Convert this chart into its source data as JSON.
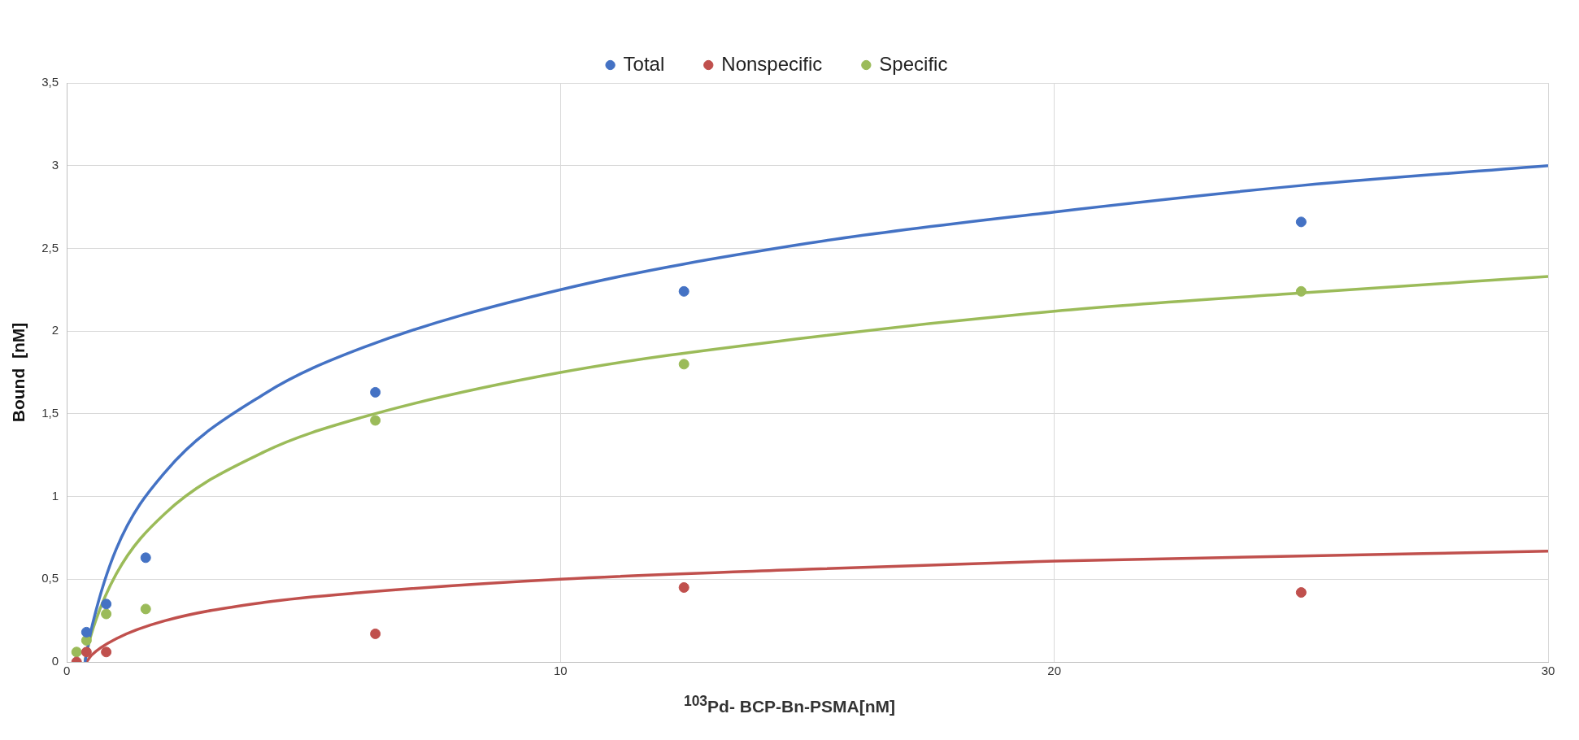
{
  "chart_data": {
    "type": "scatter",
    "xlabel": "$^{103}$Pd- BCP-Bn-PSMA[nM]",
    "ylabel": "Bound  [nM]",
    "xlim": [
      0,
      30
    ],
    "xticks": [
      0,
      10,
      20,
      30
    ],
    "ylim": [
      0,
      3.5
    ],
    "yticks": [
      0,
      {
        "value": 0.5,
        "label": "0,5"
      },
      1,
      {
        "value": 1.5,
        "label": "1,5"
      },
      2,
      {
        "value": 2.5,
        "label": "2,5"
      },
      3,
      {
        "value": 3.5,
        "label": "3,5"
      }
    ],
    "grid": true,
    "legend": "top",
    "series": [
      {
        "name": "Total",
        "color": "#4472c4",
        "marker": "circle",
        "x": [
          0.4,
          0.8,
          1.6,
          6.25,
          12.5,
          25
        ],
        "values": [
          0.18,
          0.35,
          0.63,
          1.63,
          2.24,
          2.66
        ]
      },
      {
        "name": "Nonspecific",
        "color": "#c0504d",
        "marker": "circle",
        "x": [
          0.2,
          0.4,
          0.8,
          6.25,
          12.5,
          25
        ],
        "values": [
          0,
          0.06,
          0.06,
          0.17,
          0.45,
          0.42
        ]
      },
      {
        "name": "Specific",
        "color": "#9bbb59",
        "marker": "circle",
        "x": [
          0.2,
          0.4,
          0.8,
          1.6,
          6.25,
          12.5,
          25
        ],
        "values": [
          0.06,
          0.13,
          0.29,
          0.32,
          1.46,
          1.8,
          2.24
        ]
      },
      {
        "type": "line",
        "color": "#4472c4",
        "marker": "none",
        "x": [
          0.37,
          0.5,
          1,
          2,
          4,
          6,
          10,
          15,
          20,
          25,
          30
        ],
        "values": [
          0,
          0.2,
          0.68,
          1.15,
          1.62,
          1.9,
          2.25,
          2.53,
          2.72,
          2.88,
          3
        ]
      },
      {
        "type": "line",
        "color": "#c0504d",
        "marker": "none",
        "x": [
          0.4,
          0.5,
          1,
          2,
          4,
          6,
          10,
          15,
          20,
          25,
          30
        ],
        "values": [
          0,
          0.04,
          0.14,
          0.25,
          0.36,
          0.42,
          0.5,
          0.56,
          0.61,
          0.64,
          0.67
        ]
      },
      {
        "type": "line",
        "color": "#9bbb59",
        "marker": "none",
        "x": [
          0.37,
          0.5,
          1,
          2,
          4,
          6,
          10,
          15,
          20,
          25,
          30
        ],
        "values": [
          0.01,
          0.17,
          0.53,
          0.9,
          1.27,
          1.48,
          1.75,
          1.96,
          2.12,
          2.23,
          2.33
        ]
      }
    ]
  }
}
